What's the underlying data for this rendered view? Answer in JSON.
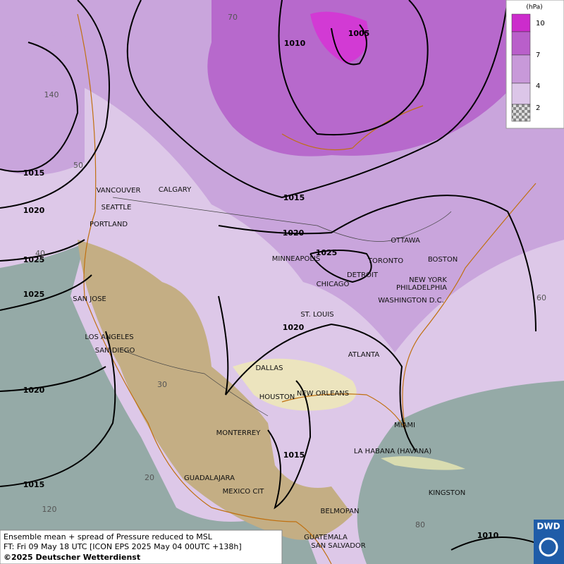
{
  "legend": {
    "unit": "(hPa)",
    "levels": [
      10,
      7,
      4,
      2
    ]
  },
  "cities": [
    "VANCOUVER",
    "CALGARY",
    "SEATTLE",
    "PORTLAND",
    "SAN JOSE",
    "LOS ANGELES",
    "SAN DIEGO",
    "MINNEAPOLIS",
    "CHICAGO",
    "DETROIT",
    "TORONTO",
    "OTTAWA",
    "BOSTON",
    "NEW YORK",
    "PHILADELPHIA",
    "WASHINGTON D.C.",
    "ST. LOUIS",
    "DALLAS",
    "ATLANTA",
    "HOUSTON",
    "NEW ORLEANS",
    "MIAMI",
    "MONTERREY",
    "LA HABANA (HAVANA)",
    "GUADALAJARA",
    "MEXICO CIT",
    "KINGSTON",
    "BELMOPAN",
    "GUATEMALA",
    "SAN SALVADOR"
  ],
  "isobar_labels": [
    1010,
    1005,
    1015,
    1020,
    1015,
    1020,
    1025,
    1025,
    1025,
    1020,
    1020,
    1015,
    1015,
    1010
  ],
  "graticule_labels": [
    70,
    140,
    50,
    40,
    30,
    20,
    120,
    60,
    80
  ],
  "footer": {
    "line1": "Ensemble mean + spread of Pressure reduced to MSL",
    "line2": "FT: Fri 09 May 18 UTC [ICON EPS 2025 May 04 00UTC +138h]",
    "line3": "©2025 Deutscher Wetterdienst"
  },
  "logo": "DWD"
}
